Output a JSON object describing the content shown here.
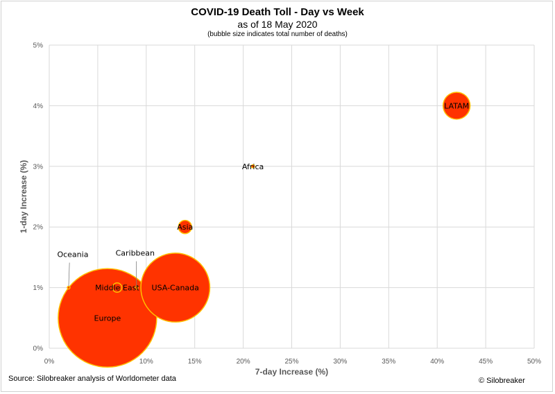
{
  "chart": {
    "title": "COVID-19 Death Toll - Day vs Week",
    "subtitle": "as of 18 May 2020",
    "note": "(bubble size indicates total number of deaths)",
    "source": "Source: Silobreaker analysis of Worldometer data",
    "copyright": "© Silobreaker"
  },
  "chart_data": {
    "type": "scatter",
    "subtype": "bubble",
    "title": "COVID-19 Death Toll - Day vs Week",
    "subtitle": "as of 18 May 2020",
    "xlabel": "7-day Increase (%)",
    "ylabel": "1-day Increase (%)",
    "xlim": [
      0,
      50
    ],
    "ylim": [
      0,
      5
    ],
    "x_ticks": [
      "0%",
      "5%",
      "10%",
      "15%",
      "20%",
      "25%",
      "30%",
      "35%",
      "40%",
      "45%",
      "50%"
    ],
    "y_ticks": [
      "0%",
      "1%",
      "2%",
      "3%",
      "4%",
      "5%"
    ],
    "grid": true,
    "colors": {
      "fill": "#ff3300",
      "stroke": "#ffc000",
      "grid": "#d9d9d9"
    },
    "points": [
      {
        "label": "Europe",
        "x": 6,
        "y": 0.5,
        "size": 1.0
      },
      {
        "label": "USA-Canada",
        "x": 13,
        "y": 1.0,
        "size": 0.49
      },
      {
        "label": "LATAM",
        "x": 42,
        "y": 4.0,
        "size": 0.075
      },
      {
        "label": "Asia",
        "x": 14,
        "y": 2.0,
        "size": 0.018
      },
      {
        "label": "Middle East",
        "x": 7,
        "y": 1.0,
        "size": 0.009
      },
      {
        "label": "Africa",
        "x": 21,
        "y": 3.0,
        "size": 0.001
      },
      {
        "label": "Caribbean",
        "x": 9,
        "y": 1.0,
        "size": 0.0001
      },
      {
        "label": "Oceania",
        "x": 2,
        "y": 1.0,
        "size": 3e-05
      }
    ]
  }
}
